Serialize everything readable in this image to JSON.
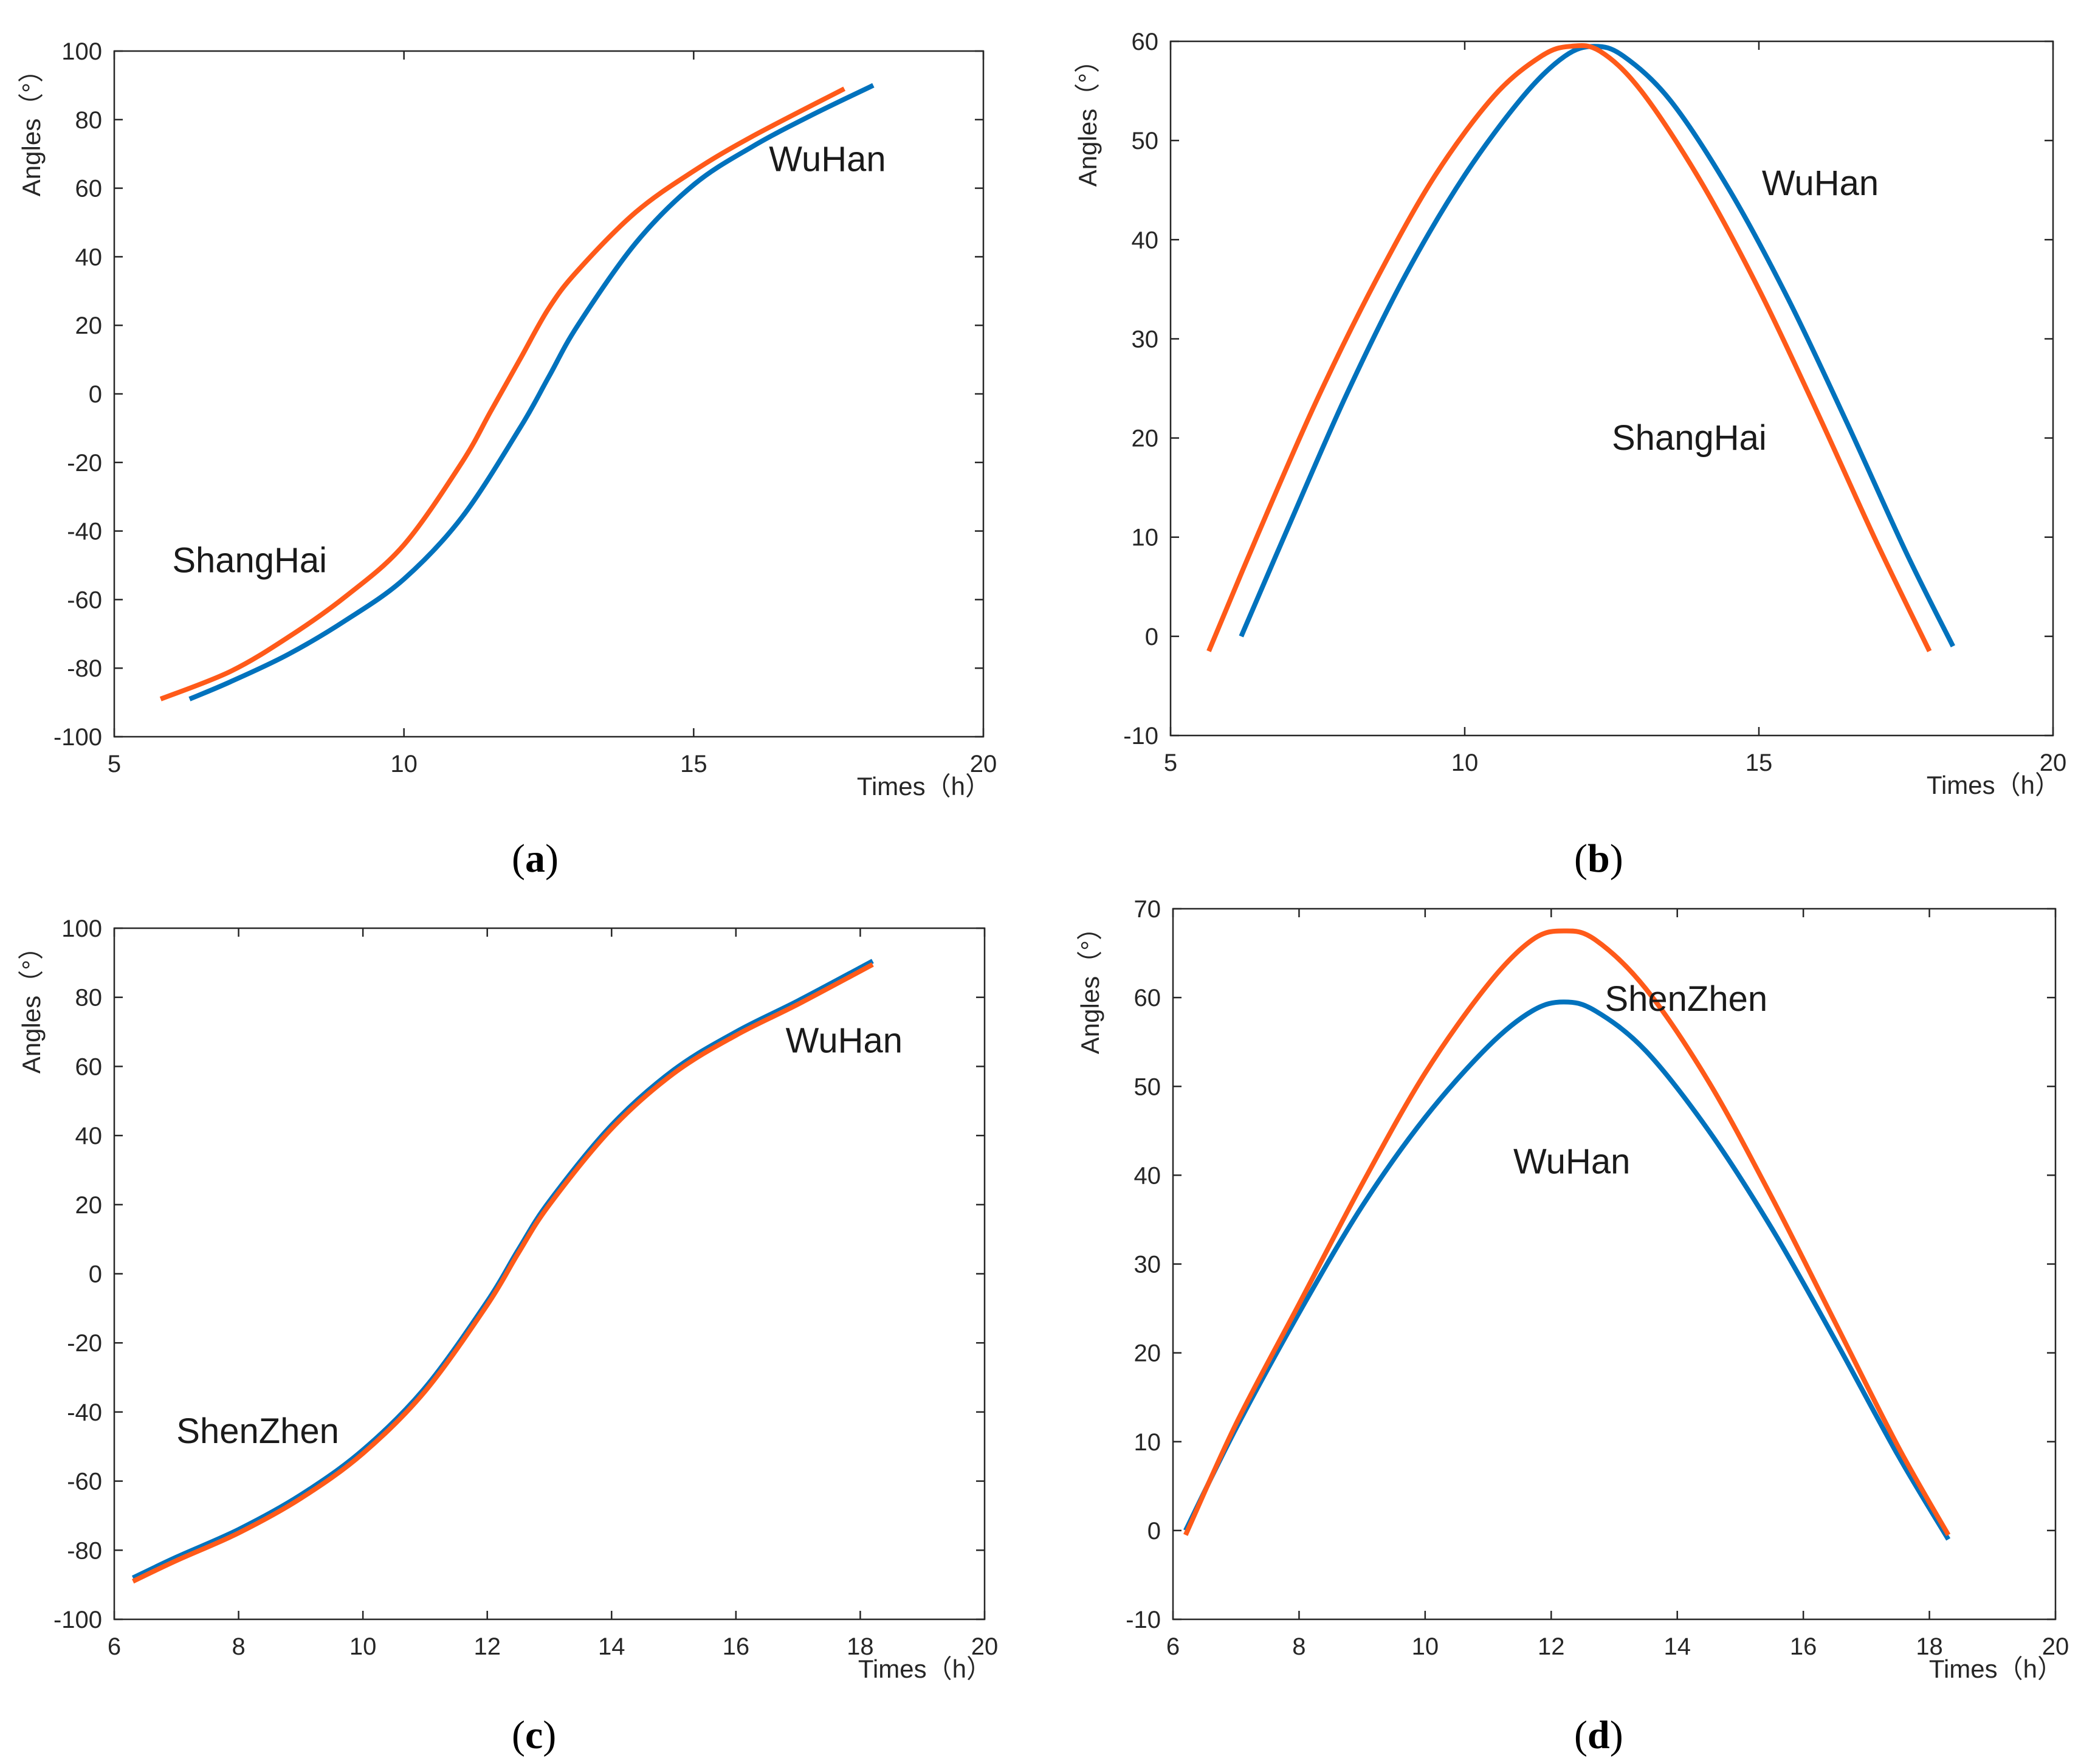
{
  "colors": {
    "wuhan": "#0072BD",
    "other": "#FF5A19"
  },
  "chart_data": [
    {
      "id": "a",
      "panel_label": "(a)",
      "panel_letter": "a",
      "type": "line",
      "xlabel": "Times（h）",
      "ylabel": "Angles（°）",
      "xlim": [
        5,
        20
      ],
      "ylim": [
        -100,
        100
      ],
      "xticks": [
        5,
        10,
        15,
        20
      ],
      "yticks": [
        -100,
        -80,
        -60,
        -40,
        -20,
        0,
        20,
        40,
        60,
        80,
        100
      ],
      "annotations": [
        {
          "text": "WuHan",
          "x": 16.3,
          "y": 65
        },
        {
          "text": "ShangHai",
          "x": 6.0,
          "y": -52
        }
      ],
      "series": [
        {
          "name": "WuHan",
          "color_key": "wuhan",
          "x": [
            6.3,
            7,
            8,
            9,
            10,
            11,
            12,
            12.5,
            13,
            14,
            15,
            16,
            17,
            18.1
          ],
          "y": [
            -89,
            -84,
            -76,
            -66,
            -54,
            -36,
            -10,
            5,
            20,
            44,
            61,
            72,
            81,
            90
          ]
        },
        {
          "name": "ShangHai",
          "color_key": "other",
          "x": [
            5.8,
            7,
            8,
            9,
            10,
            11,
            11.5,
            12,
            12.5,
            13,
            14,
            15,
            16,
            17.6
          ],
          "y": [
            -89,
            -81,
            -71,
            -59,
            -44,
            -20,
            -5,
            10,
            25,
            36,
            53,
            65,
            75,
            89
          ]
        }
      ]
    },
    {
      "id": "b",
      "panel_label": "(b)",
      "panel_letter": "b",
      "type": "line",
      "xlabel": "Times（h）",
      "ylabel": "Angles（°）",
      "xlim": [
        5,
        20
      ],
      "ylim": [
        -10,
        60
      ],
      "xticks": [
        5,
        10,
        15,
        20
      ],
      "yticks": [
        -10,
        0,
        10,
        20,
        30,
        40,
        50,
        60
      ],
      "annotations": [
        {
          "text": "WuHan",
          "x": 15.05,
          "y": 44.5
        },
        {
          "text": "ShangHai",
          "x": 12.5,
          "y": 18.8
        }
      ],
      "series": [
        {
          "name": "WuHan",
          "color_key": "wuhan",
          "x": [
            6.2,
            7,
            8,
            9,
            10,
            11,
            11.7,
            12.2,
            12.7,
            13.5,
            14.5,
            15.5,
            16.5,
            17.5,
            18.3
          ],
          "y": [
            0,
            11,
            24.5,
            36.5,
            46.5,
            54.5,
            58.5,
            59.5,
            58.5,
            54,
            45,
            34,
            21.5,
            8.5,
            -1
          ]
        },
        {
          "name": "ShangHai",
          "color_key": "other",
          "x": [
            5.65,
            6.5,
            7.5,
            8.5,
            9.5,
            10.5,
            11.3,
            11.8,
            12.3,
            13,
            14,
            15,
            16,
            17,
            17.9
          ],
          "y": [
            -1.5,
            10.5,
            24,
            36,
            46.5,
            54.5,
            58.5,
            59.5,
            59,
            55,
            46,
            35,
            22.5,
            9.5,
            -1.5
          ]
        }
      ]
    },
    {
      "id": "c",
      "panel_label": "(c)",
      "panel_letter": "c",
      "type": "line",
      "xlabel": "Times（h）",
      "ylabel": "Angles（°）",
      "xlim": [
        6,
        20
      ],
      "ylim": [
        -100,
        100
      ],
      "xticks": [
        6,
        8,
        10,
        12,
        14,
        16,
        18,
        20
      ],
      "yticks": [
        -100,
        -80,
        -60,
        -40,
        -20,
        0,
        20,
        40,
        60,
        80,
        100
      ],
      "annotations": [
        {
          "text": "WuHan",
          "x": 16.8,
          "y": 64
        },
        {
          "text": "ShenZhen",
          "x": 7.0,
          "y": -49
        }
      ],
      "series": [
        {
          "name": "WuHan",
          "color_key": "wuhan",
          "x": [
            6.3,
            7,
            8,
            9,
            10,
            11,
            12,
            12.5,
            13,
            14,
            15,
            16,
            17,
            18.2
          ],
          "y": [
            -88,
            -82,
            -74,
            -64,
            -51,
            -33,
            -8,
            7,
            21,
            43,
            59,
            70,
            79,
            90.5
          ]
        },
        {
          "name": "ShenZhen",
          "color_key": "other",
          "x": [
            6.3,
            7,
            8,
            9,
            10,
            11,
            12,
            12.5,
            13,
            14,
            15,
            16,
            17,
            18.2
          ],
          "y": [
            -89,
            -83,
            -75,
            -65,
            -52,
            -34,
            -9,
            6,
            20,
            42,
            58,
            69,
            78,
            89.5
          ]
        }
      ]
    },
    {
      "id": "d",
      "panel_label": "(d)",
      "panel_letter": "d",
      "type": "line",
      "xlabel": "Times（h）",
      "ylabel": "Angles（°）",
      "xlim": [
        6,
        20
      ],
      "ylim": [
        -10,
        70
      ],
      "xticks": [
        6,
        8,
        10,
        12,
        14,
        16,
        18,
        20
      ],
      "yticks": [
        -10,
        0,
        10,
        20,
        30,
        40,
        50,
        60,
        70
      ],
      "annotations": [
        {
          "text": "ShenZhen",
          "x": 12.85,
          "y": 58.5
        },
        {
          "text": "WuHan",
          "x": 11.4,
          "y": 40.2
        }
      ],
      "series": [
        {
          "name": "WuHan",
          "color_key": "wuhan",
          "x": [
            6.2,
            7,
            8,
            9,
            10,
            11,
            11.7,
            12.2,
            12.7,
            13.5,
            14.5,
            15.5,
            16.5,
            17.5,
            18.3
          ],
          "y": [
            0,
            11.5,
            24.5,
            36.5,
            46.5,
            54.5,
            58.5,
            59.5,
            58.5,
            54,
            45,
            34,
            21.5,
            8.5,
            -1
          ]
        },
        {
          "name": "ShenZhen",
          "color_key": "other",
          "x": [
            6.2,
            7,
            8,
            9,
            10,
            11,
            11.7,
            12.2,
            12.7,
            13.5,
            14.5,
            15.5,
            16.5,
            17.5,
            18.3
          ],
          "y": [
            -0.5,
            12,
            25.5,
            39,
            51.5,
            61.5,
            66.5,
            67.5,
            66.5,
            61,
            50.5,
            37.5,
            23.5,
            9.5,
            -0.5
          ]
        }
      ]
    }
  ]
}
